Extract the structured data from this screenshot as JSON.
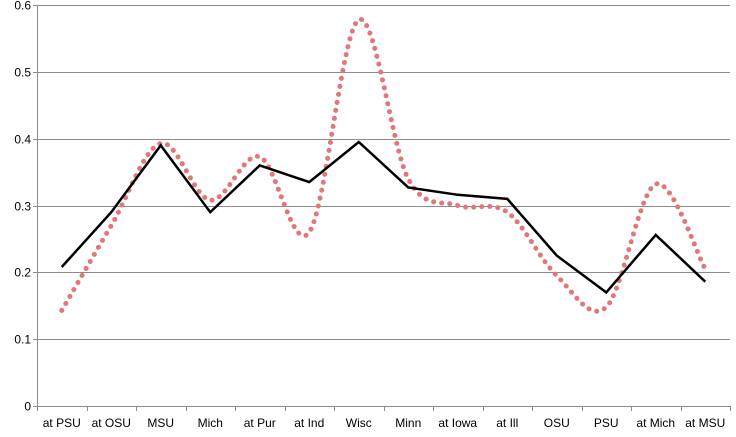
{
  "chart_data": {
    "type": "line",
    "categories": [
      "at PSU",
      "at OSU",
      "MSU",
      "Mich",
      "at Pur",
      "at Ind",
      "Wisc",
      "Minn",
      "at Iowa",
      "at Ill",
      "OSU",
      "PSU",
      "at Mich",
      "at MSU"
    ],
    "series": [
      {
        "style": "dotted-smooth",
        "color": "#e07878",
        "values": [
          0.143,
          0.27,
          0.393,
          0.308,
          0.373,
          0.26,
          0.578,
          0.34,
          0.3,
          0.29,
          0.195,
          0.148,
          0.332,
          0.205
        ]
      },
      {
        "style": "solid",
        "color": "#000000",
        "values": [
          0.208,
          0.29,
          0.39,
          0.29,
          0.36,
          0.335,
          0.395,
          0.327,
          0.316,
          0.31,
          0.225,
          0.17,
          0.256,
          0.186
        ]
      }
    ],
    "ylim": [
      0,
      0.6
    ],
    "yticks": [
      "0",
      "0.1",
      "0.2",
      "0.3",
      "0.4",
      "0.5",
      "0.6"
    ],
    "grid": true,
    "legend": "none"
  }
}
